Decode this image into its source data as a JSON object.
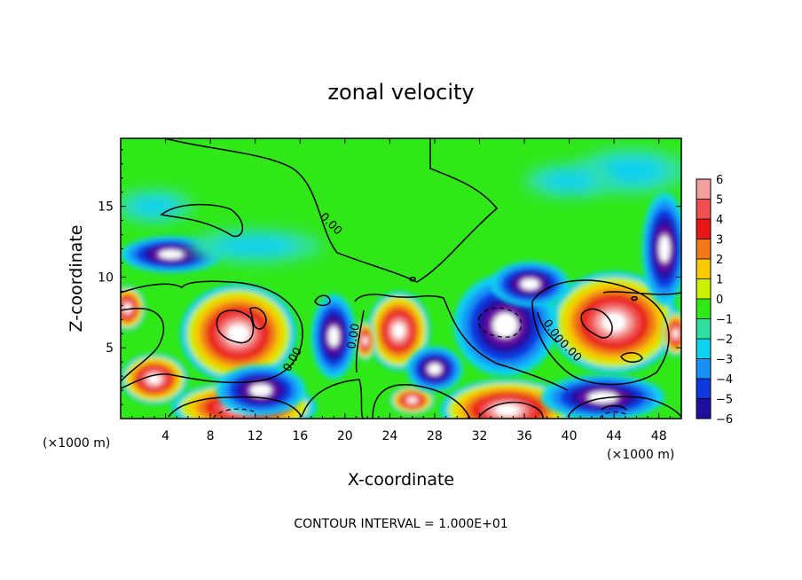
{
  "chart_data": {
    "type": "heatmap",
    "title": "zonal velocity",
    "xlabel": "X-coordinate",
    "ylabel": "Z-coordinate",
    "x_units": "(×1000 m)",
    "z_units": "(×1000 m)",
    "xlim": [
      0,
      50
    ],
    "ylim": [
      0,
      19.8
    ],
    "x_ticks": [
      4,
      8,
      12,
      16,
      20,
      24,
      28,
      32,
      36,
      40,
      44,
      48
    ],
    "y_ticks": [
      5,
      10,
      15
    ],
    "colorbar": {
      "levels": [
        6,
        5,
        4,
        3,
        2,
        1,
        0,
        -1,
        -2,
        -3,
        -4,
        -5,
        -6
      ],
      "colors": [
        "#f4a0a0",
        "#f05050",
        "#e81818",
        "#f07818",
        "#f8c800",
        "#c8f000",
        "#30e818",
        "#30e0a0",
        "#10d0f0",
        "#1890f8",
        "#1038e0",
        "#2010a0",
        "#7010a0"
      ]
    },
    "contour_labels": [
      "0.00",
      "0.00",
      "0.00",
      "0.00",
      "0.00"
    ],
    "footer": "CONTOUR INTERVAL = 1.000E+01",
    "features": [
      {
        "kind": "warm",
        "x": 10.5,
        "z": 6.0,
        "rx": 5.2,
        "rz": 3.5
      },
      {
        "kind": "warm",
        "x": 44.0,
        "z": 6.8,
        "rx": 5.8,
        "rz": 3.6
      },
      {
        "kind": "warm",
        "x": 24.8,
        "z": 6.2,
        "rx": 2.8,
        "rz": 2.8
      },
      {
        "kind": "warm",
        "x": 11.0,
        "z": 0.8,
        "rx": 6.5,
        "rz": 1.8
      },
      {
        "kind": "warm",
        "x": 34.5,
        "z": 0.6,
        "rx": 6.0,
        "rz": 2.2
      },
      {
        "kind": "warm",
        "x": 3.0,
        "z": 2.8,
        "rx": 3.0,
        "rz": 1.8
      },
      {
        "kind": "warm",
        "x": 26.0,
        "z": 1.3,
        "rx": 2.0,
        "rz": 1.0
      },
      {
        "kind": "warm",
        "x": 0.6,
        "z": 7.8,
        "rx": 1.6,
        "rz": 1.6
      },
      {
        "kind": "warm",
        "x": 49.5,
        "z": 6.0,
        "rx": 1.2,
        "rz": 1.6
      },
      {
        "kind": "warm",
        "x": 21.8,
        "z": 5.5,
        "rx": 1.0,
        "rz": 1.4
      },
      {
        "kind": "cold",
        "x": 34.3,
        "z": 6.6,
        "rx": 4.6,
        "rz": 3.6
      },
      {
        "kind": "cold",
        "x": 19.0,
        "z": 5.8,
        "rx": 2.0,
        "rz": 3.0
      },
      {
        "kind": "cold",
        "x": 12.5,
        "z": 2.0,
        "rx": 4.0,
        "rz": 1.8
      },
      {
        "kind": "cold",
        "x": 43.0,
        "z": 1.5,
        "rx": 5.5,
        "rz": 1.6
      },
      {
        "kind": "cold",
        "x": 4.5,
        "z": 11.6,
        "rx": 4.5,
        "rz": 1.3
      },
      {
        "kind": "cold",
        "x": 48.5,
        "z": 12.0,
        "rx": 2.0,
        "rz": 4.0
      },
      {
        "kind": "cold",
        "x": 28.0,
        "z": 3.5,
        "rx": 2.5,
        "rz": 1.6
      },
      {
        "kind": "cold",
        "x": 36.5,
        "z": 9.5,
        "rx": 3.5,
        "rz": 1.6
      },
      {
        "kind": "cyan",
        "x": 3.0,
        "z": 15.0,
        "rx": 3.5,
        "rz": 1.2
      },
      {
        "kind": "cyan",
        "x": 45.5,
        "z": 17.5,
        "rx": 5.0,
        "rz": 1.6
      },
      {
        "kind": "cyan",
        "x": 40.0,
        "z": 16.8,
        "rx": 4.0,
        "rz": 1.2
      },
      {
        "kind": "cyan",
        "x": 12.0,
        "z": 12.2,
        "rx": 6.0,
        "rz": 1.2
      }
    ]
  }
}
